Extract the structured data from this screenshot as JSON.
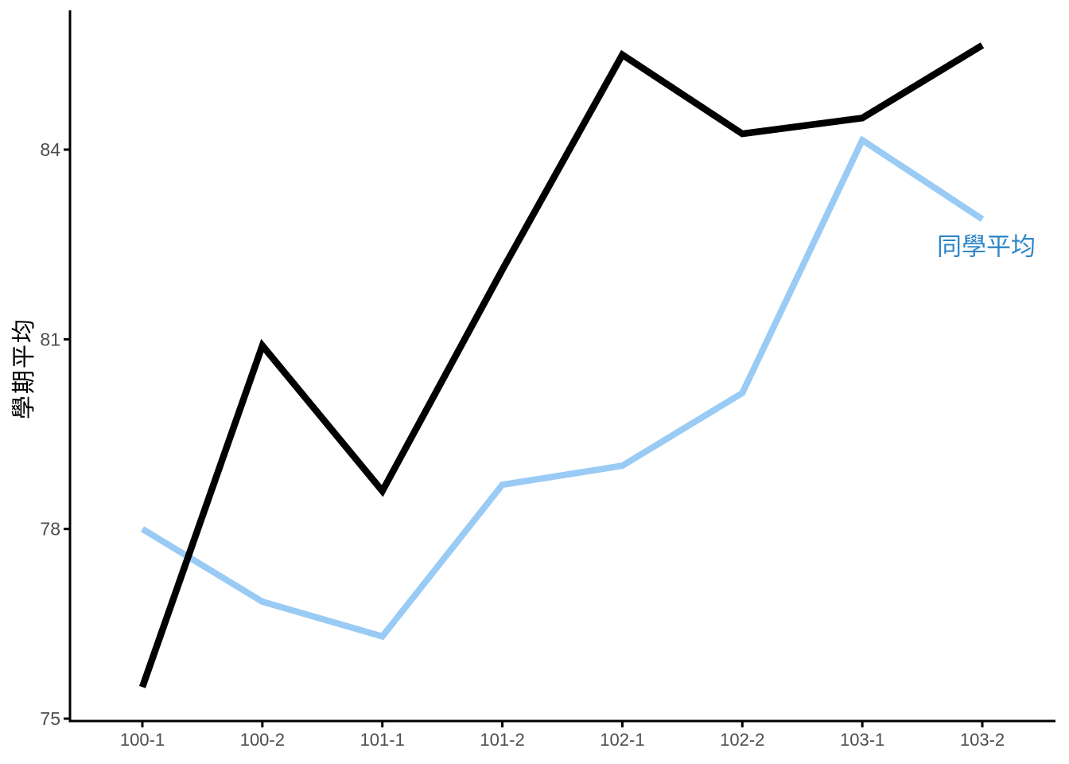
{
  "chart_data": {
    "type": "line",
    "title": "",
    "xlabel": "",
    "ylabel": "學期平均",
    "categories": [
      "100-1",
      "100-2",
      "101-1",
      "101-2",
      "102-1",
      "102-2",
      "103-1",
      "103-2"
    ],
    "series": [
      {
        "name": "學期平均",
        "role": "student",
        "color": "#000000",
        "stroke_width": 8.5,
        "values": [
          75.5,
          80.9,
          78.6,
          82.1,
          85.5,
          84.25,
          84.5,
          85.65
        ]
      },
      {
        "name": "同學平均",
        "role": "classmates",
        "color": "#99CBF5",
        "stroke_width": 8,
        "values": [
          78.0,
          76.85,
          76.3,
          78.7,
          79.0,
          80.15,
          84.15,
          82.9
        ]
      }
    ],
    "yticks": [
      75,
      78,
      81,
      84
    ],
    "ylim": [
      75,
      86.3
    ],
    "grid": false,
    "legend_position": "none",
    "annotation": {
      "text": "同學平均",
      "color": "#2E86C8",
      "x_category": "103-2",
      "y_value": 82.5
    },
    "axis_color": "#000000",
    "tick_label_color": "#4d4d4d"
  }
}
